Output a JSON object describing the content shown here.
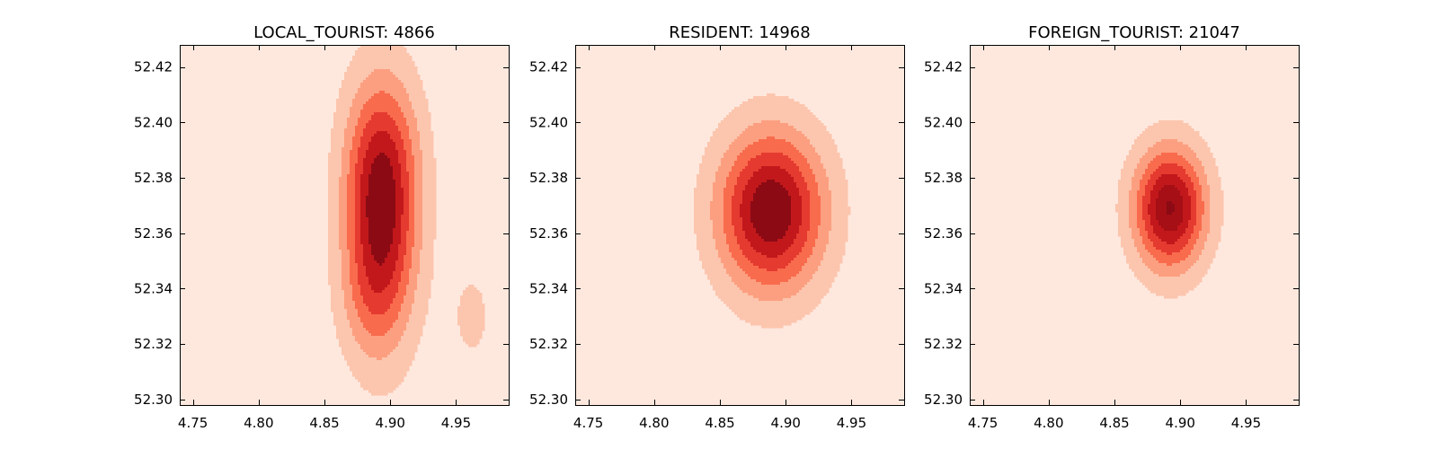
{
  "chart_data": [
    {
      "type": "contour",
      "title": "LOCAL_TOURIST: 4866",
      "xlabel": "",
      "ylabel": "",
      "xlim": [
        4.74,
        4.99
      ],
      "ylim": [
        52.298,
        52.428
      ],
      "xticks": [
        4.75,
        4.8,
        4.85,
        4.9,
        4.95
      ],
      "xtick_labels": [
        "4.75",
        "4.80",
        "4.85",
        "4.90",
        "4.95"
      ],
      "yticks": [
        52.3,
        52.32,
        52.34,
        52.36,
        52.38,
        52.4,
        52.42
      ],
      "ytick_labels": [
        "52.30",
        "52.32",
        "52.34",
        "52.36",
        "52.38",
        "52.40",
        "52.42"
      ],
      "colormap": "Reds",
      "background_color": "#fee8de",
      "grid": false,
      "density_components": [
        {
          "cx": 4.893,
          "cy": 52.365,
          "sx": 0.019,
          "sy": 0.03,
          "w": 1.0
        },
        {
          "cx": 4.895,
          "cy": 52.392,
          "sx": 0.02,
          "sy": 0.02,
          "w": 0.22
        },
        {
          "cx": 4.962,
          "cy": 52.33,
          "sx": 0.014,
          "sy": 0.016,
          "w": 0.14
        },
        {
          "cx": 4.882,
          "cy": 52.335,
          "sx": 0.016,
          "sy": 0.014,
          "w": 0.12
        }
      ],
      "levels": [
        0.1,
        0.25,
        0.4,
        0.55,
        0.7,
        0.85
      ],
      "level_colors": [
        "#fcc5ad",
        "#fc9f80",
        "#f96b4d",
        "#e53a2f",
        "#c2181c",
        "#8c0a14"
      ]
    },
    {
      "type": "contour",
      "title": "RESIDENT: 14968",
      "xlabel": "",
      "ylabel": "",
      "xlim": [
        4.74,
        4.99
      ],
      "ylim": [
        52.298,
        52.428
      ],
      "xticks": [
        4.75,
        4.8,
        4.85,
        4.9,
        4.95
      ],
      "xtick_labels": [
        "4.75",
        "4.80",
        "4.85",
        "4.90",
        "4.95"
      ],
      "yticks": [
        52.3,
        52.32,
        52.34,
        52.36,
        52.38,
        52.4,
        52.42
      ],
      "ytick_labels": [
        "52.30",
        "52.32",
        "52.34",
        "52.36",
        "52.38",
        "52.40",
        "52.42"
      ],
      "colormap": "Reds",
      "background_color": "#fee8de",
      "grid": false,
      "density_components": [
        {
          "cx": 4.889,
          "cy": 52.368,
          "sx": 0.0275,
          "sy": 0.0196,
          "w": 1.0
        }
      ],
      "levels": [
        0.1,
        0.25,
        0.4,
        0.55,
        0.7,
        0.85
      ],
      "level_colors": [
        "#fcc5ad",
        "#fc9f80",
        "#f96b4d",
        "#e53a2f",
        "#c2181c",
        "#8c0a14"
      ]
    },
    {
      "type": "contour",
      "title": "FOREIGN_TOURIST: 21047",
      "xlabel": "",
      "ylabel": "",
      "xlim": [
        4.74,
        4.99
      ],
      "ylim": [
        52.298,
        52.428
      ],
      "xticks": [
        4.75,
        4.8,
        4.85,
        4.9,
        4.95
      ],
      "xtick_labels": [
        "4.75",
        "4.80",
        "4.85",
        "4.90",
        "4.95"
      ],
      "yticks": [
        52.3,
        52.32,
        52.34,
        52.36,
        52.38,
        52.4,
        52.42
      ],
      "ytick_labels": [
        "52.30",
        "52.32",
        "52.34",
        "52.36",
        "52.38",
        "52.40",
        "52.42"
      ],
      "colormap": "Reds",
      "background_color": "#fee8de",
      "grid": false,
      "density_components": [
        {
          "cx": 4.892,
          "cy": 52.369,
          "sx": 0.0188,
          "sy": 0.015,
          "w": 1.0
        }
      ],
      "levels": [
        0.1,
        0.25,
        0.4,
        0.55,
        0.7,
        0.85,
        0.985
      ],
      "level_colors": [
        "#fcc5ad",
        "#fc9f80",
        "#f96b4d",
        "#e53a2f",
        "#c2181c",
        "#a50f15",
        "#8c0a14"
      ]
    }
  ]
}
